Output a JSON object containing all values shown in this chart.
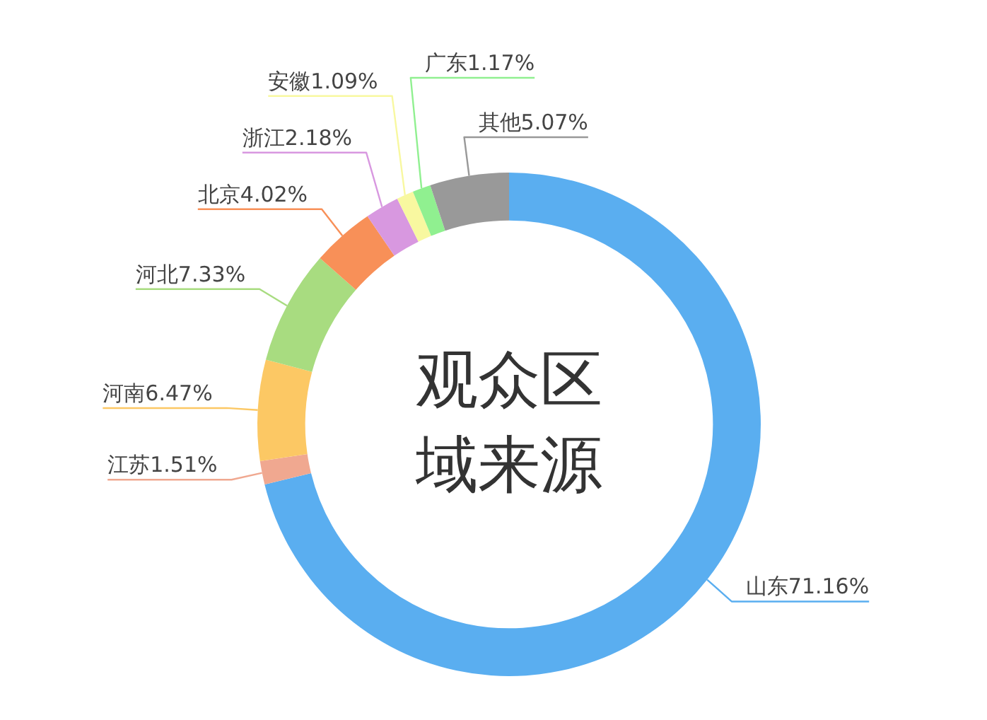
{
  "chart_data": {
    "type": "donut",
    "title": "观众区域来源",
    "categories": [
      "山东",
      "江苏",
      "河南",
      "河北",
      "北京",
      "浙江",
      "安徽",
      "广东",
      "其他"
    ],
    "values": [
      71.16,
      1.51,
      6.47,
      7.33,
      4.02,
      2.18,
      1.09,
      1.17,
      5.07
    ],
    "value_labels": [
      "71.16%",
      "1.51%",
      "6.47%",
      "7.33%",
      "4.02%",
      "2.18%",
      "1.09%",
      "1.17%",
      "5.07%"
    ],
    "colors": [
      "#5aaef0",
      "#f0a890",
      "#fcc864",
      "#a8dc80",
      "#f89058",
      "#d898e0",
      "#f8f8a0",
      "#90f090",
      "#999999"
    ],
    "legend": false
  }
}
